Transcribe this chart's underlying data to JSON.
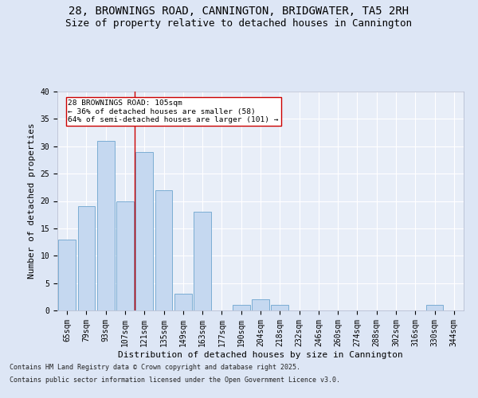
{
  "title1": "28, BROWNINGS ROAD, CANNINGTON, BRIDGWATER, TA5 2RH",
  "title2": "Size of property relative to detached houses in Cannington",
  "xlabel": "Distribution of detached houses by size in Cannington",
  "ylabel": "Number of detached properties",
  "categories": [
    "65sqm",
    "79sqm",
    "93sqm",
    "107sqm",
    "121sqm",
    "135sqm",
    "149sqm",
    "163sqm",
    "177sqm",
    "190sqm",
    "204sqm",
    "218sqm",
    "232sqm",
    "246sqm",
    "260sqm",
    "274sqm",
    "288sqm",
    "302sqm",
    "316sqm",
    "330sqm",
    "344sqm"
  ],
  "values": [
    13,
    19,
    31,
    20,
    29,
    22,
    3,
    18,
    0,
    1,
    2,
    1,
    0,
    0,
    0,
    0,
    0,
    0,
    0,
    1,
    0
  ],
  "bar_color": "#c5d8f0",
  "bar_edge_color": "#7badd4",
  "vline_x": 3.5,
  "vline_color": "#cc0000",
  "annotation_text": "28 BROWNINGS ROAD: 105sqm\n← 36% of detached houses are smaller (58)\n64% of semi-detached houses are larger (101) →",
  "annotation_box_color": "#ffffff",
  "annotation_edge_color": "#cc0000",
  "ylim": [
    0,
    40
  ],
  "yticks": [
    0,
    5,
    10,
    15,
    20,
    25,
    30,
    35,
    40
  ],
  "footer1": "Contains HM Land Registry data © Crown copyright and database right 2025.",
  "footer2": "Contains public sector information licensed under the Open Government Licence v3.0.",
  "bg_color": "#dde6f5",
  "plot_bg_color": "#e8eef8",
  "grid_color": "#ffffff",
  "title_fontsize": 10,
  "subtitle_fontsize": 9,
  "tick_fontsize": 7,
  "label_fontsize": 8,
  "footer_fontsize": 6
}
